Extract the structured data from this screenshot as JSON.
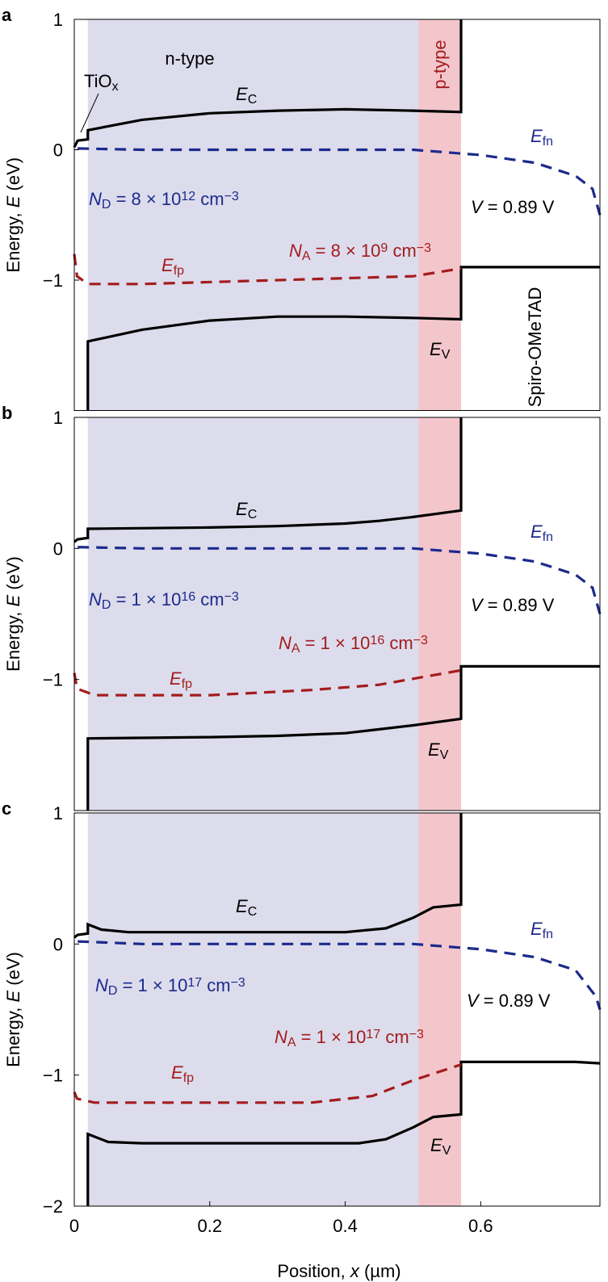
{
  "chart_data": [
    {
      "type": "line",
      "panel": "a",
      "ylabel": [
        {
          "t": "Energy, "
        },
        {
          "t": "E",
          "s": "i"
        },
        {
          "t": " (eV)"
        }
      ],
      "xlim": [
        0,
        0.776
      ],
      "ylim": [
        -2,
        1
      ],
      "yticks": [
        {
          "value": -1,
          "label": "−1"
        },
        0,
        1
      ],
      "regions": [
        {
          "x": [
            0.02,
            0.508
          ],
          "color": "#dcdcec"
        },
        {
          "x": [
            0.508,
            0.571
          ],
          "color": "#f3c6cc"
        }
      ],
      "series": [
        {
          "color": "#000000",
          "dash": false,
          "x": [
            0,
            0.005,
            0.02,
            0.02,
            0.1,
            0.2,
            0.3,
            0.4,
            0.5,
            0.571,
            0.571
          ],
          "values": [
            0.02,
            0.07,
            0.08,
            0.15,
            0.23,
            0.28,
            0.3,
            0.31,
            0.3,
            0.29,
            1
          ]
        },
        {
          "color": "#000000",
          "dash": false,
          "x": [
            0.02,
            0.02,
            0.1,
            0.2,
            0.3,
            0.4,
            0.5,
            0.571,
            0.571,
            0.776
          ],
          "values": [
            -2,
            -1.47,
            -1.38,
            -1.31,
            -1.28,
            -1.28,
            -1.29,
            -1.3,
            -0.9,
            -0.9
          ]
        },
        {
          "color": "#1c2a8c",
          "dash": true,
          "x": [
            0.005,
            0.1,
            0.3,
            0.5,
            0.6,
            0.68,
            0.74,
            0.765,
            0.776
          ],
          "values": [
            0.01,
            0,
            0,
            0,
            -0.04,
            -0.1,
            -0.2,
            -0.3,
            -0.5
          ]
        },
        {
          "color": "#a31c1c",
          "dash": true,
          "x": [
            0,
            0.004,
            0.02,
            0.1,
            0.3,
            0.5,
            0.571
          ],
          "values": [
            -0.8,
            -0.97,
            -1.03,
            -1.03,
            -1.0,
            -0.97,
            -0.91
          ]
        }
      ],
      "annotations": [
        {
          "color": "#000000",
          "parts": [
            {
              "t": "n-type"
            }
          ]
        },
        {
          "color": "#a31c1c",
          "parts": [
            {
              "t": "p-type"
            }
          ]
        },
        {
          "color": "#000000",
          "parts": [
            {
              "t": "TiO"
            },
            {
              "t": "x",
              "s": "sub"
            }
          ]
        },
        {
          "color": "#000000",
          "parts": [
            {
              "t": "E",
              "s": "i"
            },
            {
              "t": "C",
              "s": "sub"
            }
          ]
        },
        {
          "color": "#1c2a8c",
          "parts": [
            {
              "t": "E",
              "s": "i"
            },
            {
              "t": "fn",
              "s": "sub"
            }
          ]
        },
        {
          "color": "#1c2a8c",
          "parts": [
            {
              "t": "N",
              "s": "i"
            },
            {
              "t": "D",
              "s": "sub"
            },
            {
              "t": " = 8 × 10"
            },
            {
              "t": "12",
              "s": "sup"
            },
            {
              "t": " cm"
            },
            {
              "t": "−3",
              "s": "sup"
            }
          ]
        },
        {
          "color": "#000000",
          "parts": [
            {
              "t": "V",
              "s": "i"
            },
            {
              "t": " = 0.89 V"
            }
          ]
        },
        {
          "color": "#a31c1c",
          "parts": [
            {
              "t": "E",
              "s": "i"
            },
            {
              "t": "fp",
              "s": "sub"
            }
          ]
        },
        {
          "color": "#a31c1c",
          "parts": [
            {
              "t": "N",
              "s": "i"
            },
            {
              "t": "A",
              "s": "sub"
            },
            {
              "t": " = 8 × 10"
            },
            {
              "t": "9",
              "s": "sup"
            },
            {
              "t": " cm"
            },
            {
              "t": "−3",
              "s": "sup"
            }
          ]
        },
        {
          "color": "#000000",
          "parts": [
            {
              "t": "E",
              "s": "i"
            },
            {
              "t": "V",
              "s": "sub"
            }
          ]
        },
        {
          "color": "#000000",
          "parts": [
            {
              "t": "Spiro-OMeTAD"
            }
          ]
        }
      ]
    },
    {
      "type": "line",
      "panel": "b",
      "ylabel": [
        {
          "t": "Energy, "
        },
        {
          "t": "E",
          "s": "i"
        },
        {
          "t": " (eV)"
        }
      ],
      "xlim": [
        0,
        0.776
      ],
      "ylim": [
        -2,
        1
      ],
      "yticks": [
        {
          "value": -1,
          "label": "−1"
        },
        0,
        1
      ],
      "regions": [
        {
          "x": [
            0.02,
            0.508
          ],
          "color": "#dcdcec"
        },
        {
          "x": [
            0.508,
            0.571
          ],
          "color": "#f3c6cc"
        }
      ],
      "series": [
        {
          "color": "#000000",
          "dash": false,
          "x": [
            0,
            0.005,
            0.02,
            0.02,
            0.2,
            0.3,
            0.4,
            0.45,
            0.5,
            0.571,
            0.571
          ],
          "values": [
            0.05,
            0.07,
            0.08,
            0.15,
            0.16,
            0.17,
            0.19,
            0.21,
            0.24,
            0.29,
            1
          ]
        },
        {
          "color": "#000000",
          "dash": false,
          "x": [
            0.02,
            0.02,
            0.2,
            0.3,
            0.4,
            0.45,
            0.5,
            0.571,
            0.571,
            0.776
          ],
          "values": [
            -2,
            -1.45,
            -1.44,
            -1.43,
            -1.41,
            -1.38,
            -1.35,
            -1.3,
            -0.9,
            -0.9
          ]
        },
        {
          "color": "#1c2a8c",
          "dash": true,
          "x": [
            0.005,
            0.1,
            0.3,
            0.5,
            0.6,
            0.68,
            0.74,
            0.765,
            0.776
          ],
          "values": [
            0.01,
            0,
            0,
            0,
            -0.04,
            -0.1,
            -0.2,
            -0.3,
            -0.5
          ]
        },
        {
          "color": "#a31c1c",
          "dash": true,
          "x": [
            0,
            0.004,
            0.03,
            0.2,
            0.35,
            0.45,
            0.571
          ],
          "values": [
            -0.95,
            -1.07,
            -1.12,
            -1.12,
            -1.08,
            -1.04,
            -0.93
          ]
        }
      ],
      "annotations": [
        {
          "color": "#000000",
          "parts": [
            {
              "t": "E",
              "s": "i"
            },
            {
              "t": "C",
              "s": "sub"
            }
          ]
        },
        {
          "color": "#1c2a8c",
          "parts": [
            {
              "t": "E",
              "s": "i"
            },
            {
              "t": "fn",
              "s": "sub"
            }
          ]
        },
        {
          "color": "#1c2a8c",
          "parts": [
            {
              "t": "N",
              "s": "i"
            },
            {
              "t": "D",
              "s": "sub"
            },
            {
              "t": " = 1 × 10"
            },
            {
              "t": "16",
              "s": "sup"
            },
            {
              "t": " cm"
            },
            {
              "t": "−3",
              "s": "sup"
            }
          ]
        },
        {
          "color": "#000000",
          "parts": [
            {
              "t": "V",
              "s": "i"
            },
            {
              "t": " = 0.89 V"
            }
          ]
        },
        {
          "color": "#a31c1c",
          "parts": [
            {
              "t": "N",
              "s": "i"
            },
            {
              "t": "A",
              "s": "sub"
            },
            {
              "t": " = 1 × 10"
            },
            {
              "t": "16",
              "s": "sup"
            },
            {
              "t": " cm"
            },
            {
              "t": "−3",
              "s": "sup"
            }
          ]
        },
        {
          "color": "#a31c1c",
          "parts": [
            {
              "t": "E",
              "s": "i"
            },
            {
              "t": "fp",
              "s": "sub"
            }
          ]
        },
        {
          "color": "#000000",
          "parts": [
            {
              "t": "E",
              "s": "i"
            },
            {
              "t": "V",
              "s": "sub"
            }
          ]
        }
      ]
    },
    {
      "type": "line",
      "panel": "c",
      "ylabel": [
        {
          "t": "Energy, "
        },
        {
          "t": "E",
          "s": "i"
        },
        {
          "t": " (eV)"
        }
      ],
      "xlabel": [
        {
          "t": "Position, "
        },
        {
          "t": "x",
          "s": "i"
        },
        {
          "t": " (µm)"
        }
      ],
      "xlim": [
        0,
        0.776
      ],
      "ylim": [
        -2,
        1
      ],
      "xticks": [
        0,
        0.2,
        0.4,
        0.6
      ],
      "yticks": [
        {
          "value": -2,
          "label": "−2"
        },
        {
          "value": -1,
          "label": "−1"
        },
        0,
        1
      ],
      "regions": [
        {
          "x": [
            0.02,
            0.508
          ],
          "color": "#dcdcec"
        },
        {
          "x": [
            0.508,
            0.571
          ],
          "color": "#f3c6cc"
        }
      ],
      "series": [
        {
          "color": "#000000",
          "dash": false,
          "x": [
            0,
            0.005,
            0.02,
            0.02,
            0.04,
            0.08,
            0.4,
            0.46,
            0.5,
            0.53,
            0.571,
            0.571
          ],
          "values": [
            0.05,
            0.07,
            0.08,
            0.15,
            0.11,
            0.09,
            0.09,
            0.12,
            0.2,
            0.28,
            0.3,
            1
          ]
        },
        {
          "color": "#000000",
          "dash": false,
          "x": [
            0.02,
            0.02,
            0.05,
            0.1,
            0.42,
            0.46,
            0.5,
            0.53,
            0.571,
            0.571,
            0.74,
            0.776
          ],
          "values": [
            -2,
            -1.45,
            -1.51,
            -1.52,
            -1.52,
            -1.49,
            -1.4,
            -1.32,
            -1.3,
            -0.9,
            -0.9,
            -0.91
          ]
        },
        {
          "color": "#1c2a8c",
          "dash": true,
          "x": [
            0.005,
            0.1,
            0.3,
            0.5,
            0.6,
            0.68,
            0.74,
            0.77,
            0.776
          ],
          "values": [
            0.02,
            0,
            0,
            0,
            -0.04,
            -0.1,
            -0.2,
            -0.4,
            -0.5
          ]
        },
        {
          "color": "#a31c1c",
          "dash": true,
          "x": [
            0,
            0.004,
            0.03,
            0.35,
            0.44,
            0.5,
            0.571
          ],
          "values": [
            -1.13,
            -1.18,
            -1.21,
            -1.21,
            -1.16,
            -1.04,
            -0.92
          ]
        }
      ],
      "annotations": [
        {
          "color": "#000000",
          "parts": [
            {
              "t": "E",
              "s": "i"
            },
            {
              "t": "C",
              "s": "sub"
            }
          ]
        },
        {
          "color": "#1c2a8c",
          "parts": [
            {
              "t": "E",
              "s": "i"
            },
            {
              "t": "fn",
              "s": "sub"
            }
          ]
        },
        {
          "color": "#1c2a8c",
          "parts": [
            {
              "t": "N",
              "s": "i"
            },
            {
              "t": "D",
              "s": "sub"
            },
            {
              "t": " = 1 × 10"
            },
            {
              "t": "17",
              "s": "sup"
            },
            {
              "t": " cm"
            },
            {
              "t": "−3",
              "s": "sup"
            }
          ]
        },
        {
          "color": "#000000",
          "parts": [
            {
              "t": "V",
              "s": "i"
            },
            {
              "t": " = 0.89 V"
            }
          ]
        },
        {
          "color": "#a31c1c",
          "parts": [
            {
              "t": "N",
              "s": "i"
            },
            {
              "t": "A",
              "s": "sub"
            },
            {
              "t": " = 1 × 10"
            },
            {
              "t": "17",
              "s": "sup"
            },
            {
              "t": " cm"
            },
            {
              "t": "−3",
              "s": "sup"
            }
          ]
        },
        {
          "color": "#a31c1c",
          "parts": [
            {
              "t": "E",
              "s": "i"
            },
            {
              "t": "fp",
              "s": "sub"
            }
          ]
        },
        {
          "color": "#000000",
          "parts": [
            {
              "t": "E",
              "s": "i"
            },
            {
              "t": "V",
              "s": "sub"
            }
          ]
        }
      ]
    }
  ]
}
